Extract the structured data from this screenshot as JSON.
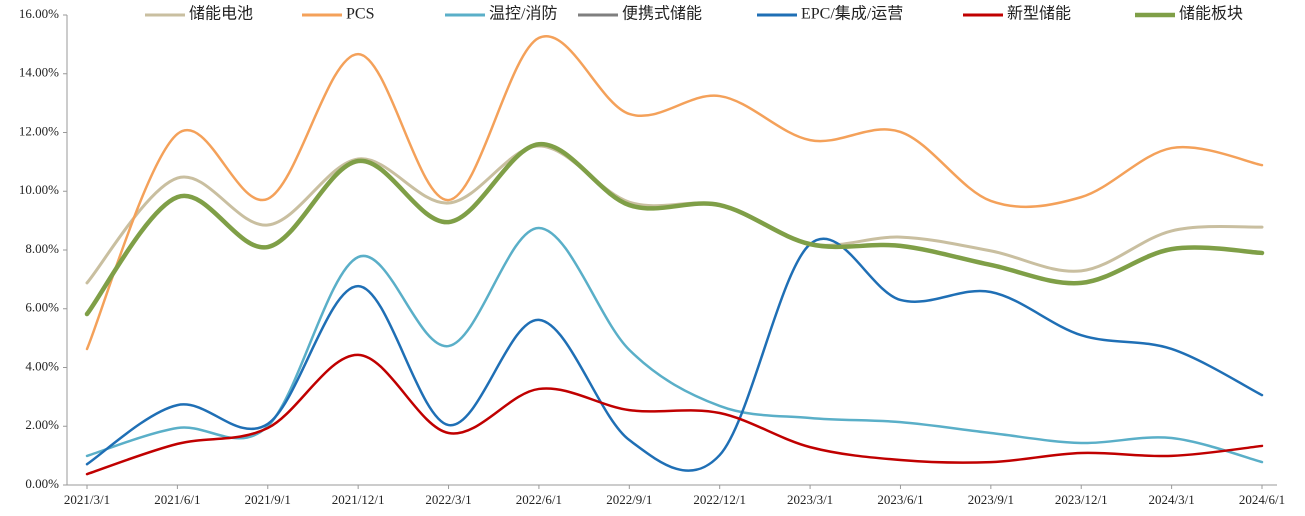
{
  "chart_data": {
    "type": "line",
    "categories": [
      "2021/3/1",
      "2021/6/1",
      "2021/9/1",
      "2021/12/1",
      "2022/3/1",
      "2022/6/1",
      "2022/9/1",
      "2022/12/1",
      "2023/3/1",
      "2023/6/1",
      "2023/9/1",
      "2023/12/1",
      "2024/3/1",
      "2024/6/1"
    ],
    "series": [
      {
        "name": "储能电池",
        "color": "#c9bfa0",
        "width": 3,
        "values": [
          6.88,
          10.45,
          8.85,
          11.1,
          9.6,
          11.54,
          9.63,
          9.53,
          8.2,
          8.44,
          7.97,
          7.29,
          8.65,
          8.78
        ]
      },
      {
        "name": "PCS",
        "color": "#f4a15a",
        "width": 2.5,
        "values": [
          4.63,
          11.95,
          9.74,
          14.67,
          9.7,
          15.22,
          12.63,
          13.24,
          11.74,
          12.02,
          9.67,
          9.8,
          11.47,
          10.89
        ]
      },
      {
        "name": "温控/消防",
        "color": "#5aafc8",
        "width": 2.5,
        "values": [
          0.99,
          1.94,
          2.0,
          7.76,
          4.73,
          8.75,
          4.6,
          2.69,
          2.28,
          2.14,
          1.77,
          1.43,
          1.6,
          0.78
        ]
      },
      {
        "name": "便携式储能",
        "color": "#7f7f7f",
        "width": 2.5,
        "values": [
          5.82,
          9.8,
          8.1,
          11.03,
          8.95,
          11.6,
          9.53,
          9.53,
          8.2,
          8.14,
          7.49,
          6.88,
          8.03,
          7.9
        ]
      },
      {
        "name": "EPC/集成/运营",
        "color": "#1f6fb5",
        "width": 2.5,
        "values": [
          0.71,
          2.72,
          2.08,
          6.77,
          2.04,
          5.62,
          1.53,
          1.02,
          8.2,
          6.3,
          6.57,
          5.1,
          4.63,
          3.06
        ]
      },
      {
        "name": "新型储能",
        "color": "#c00000",
        "width": 2.5,
        "values": [
          0.37,
          1.4,
          1.94,
          4.43,
          1.77,
          3.27,
          2.55,
          2.45,
          1.29,
          0.85,
          0.78,
          1.09,
          0.99,
          1.33
        ]
      },
      {
        "name": "储能板块",
        "color": "#7f9f47",
        "width": 4.5,
        "values": [
          5.82,
          9.8,
          8.1,
          11.03,
          8.95,
          11.6,
          9.53,
          9.53,
          8.2,
          8.14,
          7.49,
          6.88,
          8.03,
          7.9
        ]
      }
    ],
    "ylim": [
      0,
      16
    ],
    "yticks": [
      {
        "value": 0,
        "label": "0.00%"
      },
      {
        "value": 2,
        "label": "2.00%"
      },
      {
        "value": 4,
        "label": "4.00%"
      },
      {
        "value": 6,
        "label": "6.00%"
      },
      {
        "value": 8,
        "label": "8.00%"
      },
      {
        "value": 10,
        "label": "10.00%"
      },
      {
        "value": 12,
        "label": "12.00%"
      },
      {
        "value": 14,
        "label": "14.00%"
      },
      {
        "value": 16,
        "label": "16.00%"
      }
    ],
    "legend": "top",
    "smooth": true
  }
}
